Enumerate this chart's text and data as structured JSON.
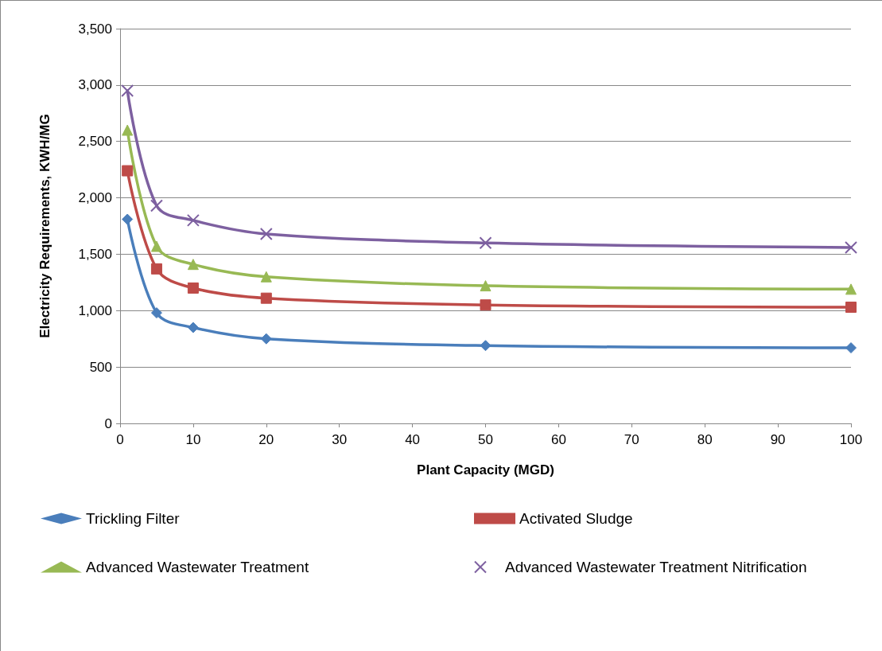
{
  "chart_data": {
    "type": "line",
    "xlabel": "Plant Capacity (MGD)",
    "ylabel": "Electricity Requirements, KWH/MG",
    "x": [
      1,
      5,
      10,
      20,
      50,
      100
    ],
    "series": [
      {
        "name": "Trickling Filter",
        "color": "#4a7ebb",
        "marker": "diamond",
        "values": [
          1810,
          980,
          850,
          750,
          690,
          670
        ]
      },
      {
        "name": "Activated Sludge",
        "color": "#be4b48",
        "marker": "square",
        "values": [
          2240,
          1370,
          1200,
          1110,
          1050,
          1030
        ]
      },
      {
        "name": "Advanced Wastewater Treatment",
        "color": "#98b954",
        "marker": "triangle",
        "values": [
          2600,
          1570,
          1410,
          1300,
          1220,
          1190
        ]
      },
      {
        "name": "Advanced Wastewater Treatment Nitrification",
        "color": "#7d60a0",
        "marker": "cross",
        "values": [
          2950,
          1930,
          1800,
          1680,
          1600,
          1560
        ]
      }
    ],
    "xlim": [
      0,
      100
    ],
    "xticks": [
      0,
      10,
      20,
      30,
      40,
      50,
      60,
      70,
      80,
      90,
      100
    ],
    "ylim": [
      0,
      3500
    ],
    "yticks": [
      {
        "value": 0,
        "label": "0"
      },
      {
        "value": 500,
        "label": "500"
      },
      {
        "value": 1000,
        "label": "1,000"
      },
      {
        "value": 1500,
        "label": "1,500"
      },
      {
        "value": 2000,
        "label": "2,000"
      },
      {
        "value": 2500,
        "label": "2,500"
      },
      {
        "value": 3000,
        "label": "3,000"
      },
      {
        "value": 3500,
        "label": "3,500"
      }
    ],
    "grid": "y",
    "legend": "bottom",
    "line_style": "solid"
  }
}
